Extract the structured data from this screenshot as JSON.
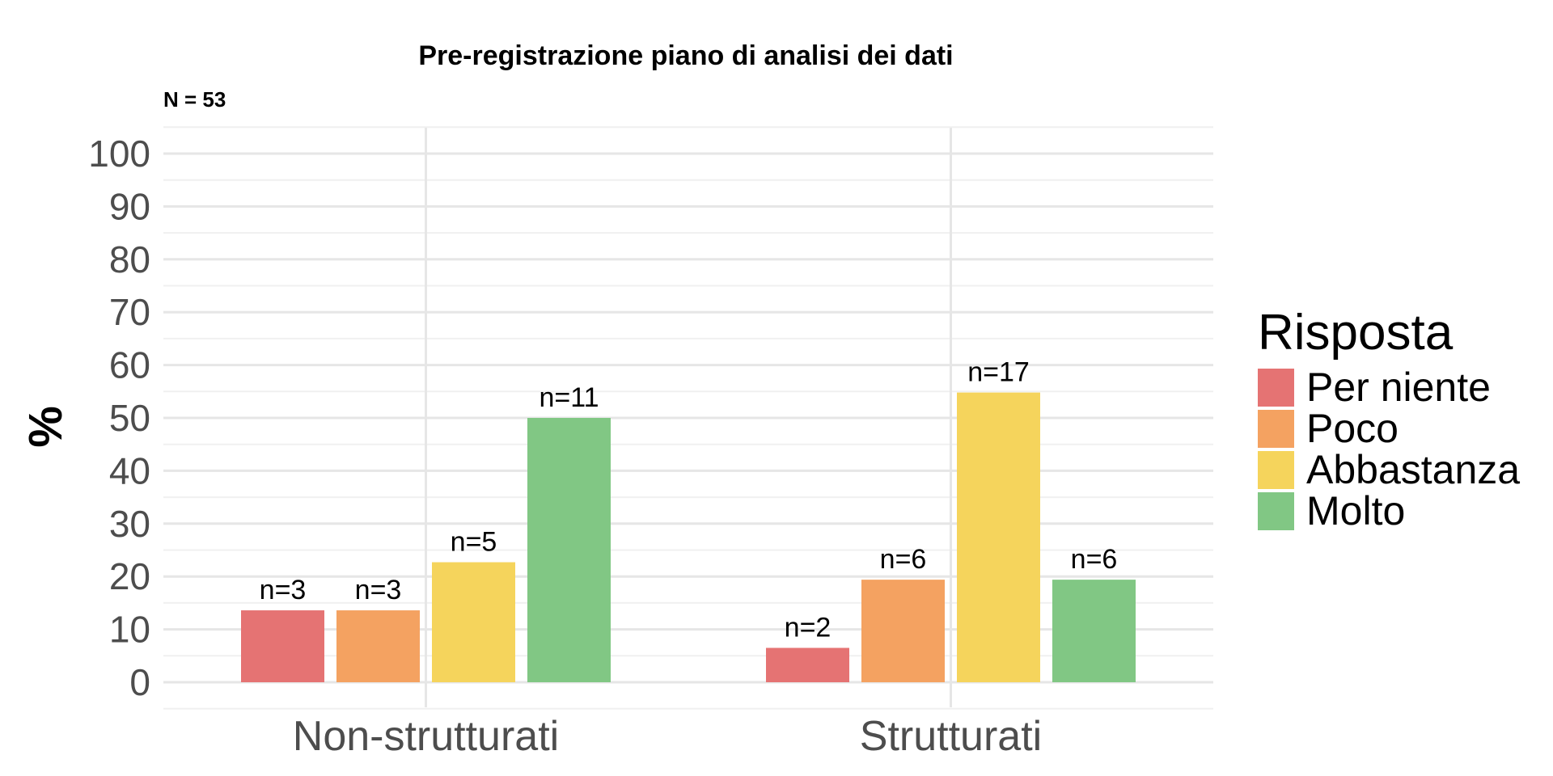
{
  "chart_data": {
    "type": "bar",
    "title": "Pre-registrazione piano di analisi dei dati",
    "subtitle": "N = 53",
    "xlabel": "",
    "ylabel": "%",
    "ylim": [
      0,
      105
    ],
    "yticks": [
      0,
      10,
      20,
      30,
      40,
      50,
      60,
      70,
      80,
      90,
      100
    ],
    "categories": [
      "Non-strutturati",
      "Strutturati"
    ],
    "series": [
      {
        "name": "Per niente",
        "color": "#e57373",
        "values": [
          13.6,
          6.5
        ],
        "labels": [
          "n=3",
          "n=2"
        ]
      },
      {
        "name": "Poco",
        "color": "#f4a261",
        "values": [
          13.6,
          19.4
        ],
        "labels": [
          "n=3",
          "n=6"
        ]
      },
      {
        "name": "Abbastanza",
        "color": "#f5d45c",
        "values": [
          22.7,
          54.8
        ],
        "labels": [
          "n=5",
          "n=17"
        ]
      },
      {
        "name": "Molto",
        "color": "#81c784",
        "values": [
          50.0,
          19.4
        ],
        "labels": [
          "n=11",
          "n=6"
        ]
      }
    ],
    "legend": {
      "title": "Risposta",
      "position": "right"
    },
    "grid": true
  }
}
